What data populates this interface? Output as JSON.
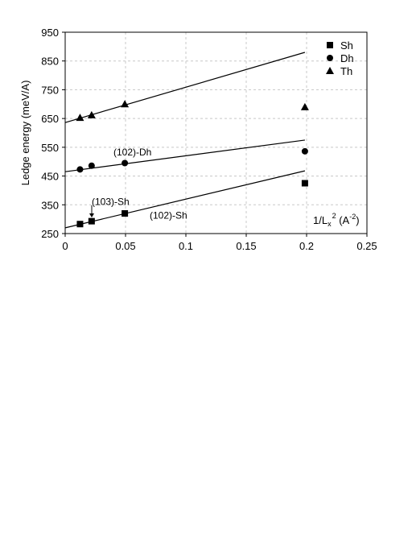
{
  "chart_data": {
    "type": "scatter",
    "ylabel": "Ledge energy (meV/A)",
    "xlabel_parts": {
      "base": "1/L",
      "sub": "x",
      "sup": "2",
      "unit_open": " (A",
      "unit_sup": "-2",
      "unit_close": ")"
    },
    "xlim": [
      0,
      0.25
    ],
    "ylim": [
      250,
      950
    ],
    "xticks": [
      0,
      0.05,
      0.1,
      0.15,
      0.2,
      0.25
    ],
    "xtick_labels": [
      "0",
      "0.05",
      "0.1",
      "0.15",
      "0.2",
      "0.25"
    ],
    "yticks": [
      250,
      350,
      450,
      550,
      650,
      750,
      850,
      950
    ],
    "ytick_labels": [
      "250",
      "350",
      "450",
      "550",
      "650",
      "750",
      "850",
      "950"
    ],
    "grid": true,
    "legend_position": "top-right",
    "series": [
      {
        "name": "Sh",
        "marker": "square",
        "x": [
          0.0123,
          0.0219,
          0.0494,
          0.1986
        ],
        "y": [
          283,
          293,
          320,
          425
        ],
        "fit": {
          "x": [
            0,
            0.1986
          ],
          "y": [
            270,
            468
          ]
        }
      },
      {
        "name": "Dh",
        "marker": "circle",
        "x": [
          0.0123,
          0.0219,
          0.0494,
          0.1986
        ],
        "y": [
          473,
          486,
          495,
          536
        ],
        "fit": {
          "x": [
            0,
            0.1986
          ],
          "y": [
            465,
            575
          ]
        }
      },
      {
        "name": "Th",
        "marker": "triangle",
        "x": [
          0.0123,
          0.0219,
          0.0494,
          0.1986
        ],
        "y": [
          653,
          662,
          700,
          690
        ],
        "fit": {
          "x": [
            0,
            0.1986
          ],
          "y": [
            636,
            880
          ]
        }
      }
    ],
    "annotations": [
      {
        "id": "ann-102-dh",
        "text": "(102)-Dh",
        "x": 0.04,
        "y": 522
      },
      {
        "id": "ann-103-sh",
        "text": "(103)-Sh",
        "x": 0.022,
        "y": 349
      },
      {
        "id": "ann-102-sh",
        "text": "(102)-Sh",
        "x": 0.07,
        "y": 302
      }
    ]
  }
}
